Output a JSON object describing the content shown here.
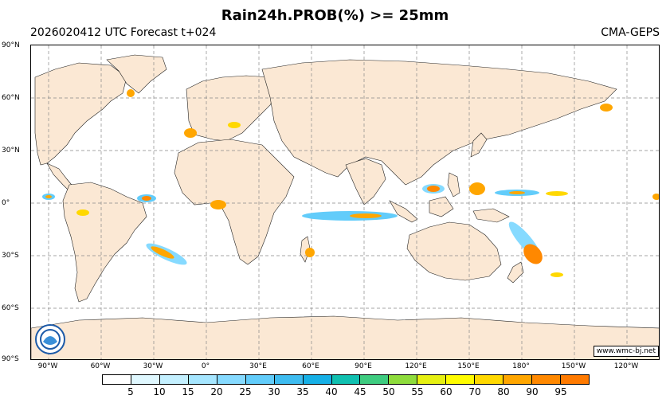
{
  "title": "Rain24h.PROB(%) >= 25mm",
  "run_info": "2026020412 UTC Forecast t+024",
  "model": "CMA-GEPS",
  "credit": "www.wmc-bj.net",
  "lat_labels": [
    "90°N",
    "60°N",
    "30°N",
    "0°",
    "30°S",
    "60°S",
    "90°S"
  ],
  "lon_labels": [
    "90°W",
    "60°W",
    "30°W",
    "0°",
    "30°E",
    "60°E",
    "90°E",
    "120°E",
    "150°E",
    "180°",
    "150°W",
    "120°W"
  ],
  "colorbar": {
    "labels": [
      "5",
      "10",
      "15",
      "20",
      "25",
      "30",
      "35",
      "40",
      "45",
      "50",
      "55",
      "60",
      "70",
      "80",
      "90",
      "95"
    ],
    "colors": [
      "#ffffff",
      "#e0f8ff",
      "#c4f0ff",
      "#a6e6ff",
      "#86daff",
      "#62ccfa",
      "#3ebcf0",
      "#16b0e6",
      "#10c0b0",
      "#3ecc80",
      "#8edc3c",
      "#e6f012",
      "#fffc00",
      "#ffd800",
      "#ffa600",
      "#ff8800"
    ]
  },
  "colors": {
    "land": "#fbe8d4",
    "grid": "#888888"
  }
}
